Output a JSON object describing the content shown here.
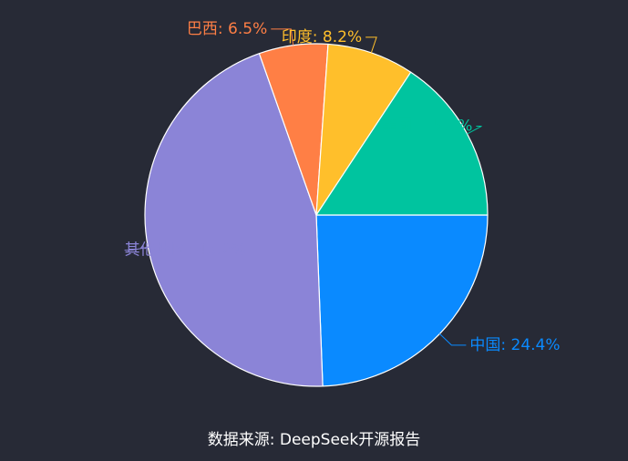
{
  "chart_data": {
    "type": "pie",
    "slices": [
      {
        "name": "中国",
        "value": 24.4,
        "display": "24.4%",
        "color": "#0a8aff"
      },
      {
        "name": "其他地区",
        "value": 45.2,
        "display": "45.2%",
        "color": "#8b84d7"
      },
      {
        "name": "巴西",
        "value": 6.5,
        "display": "6.5%",
        "color": "#ff7f45"
      },
      {
        "name": "印度",
        "value": 8.2,
        "display": "8.2%",
        "color": "#ffbf2b"
      },
      {
        "name": "美国",
        "value": 15.7,
        "display": "15.7%",
        "color": "#00c49f"
      }
    ],
    "start_angle_deg": 0,
    "direction": "clockwise-from-east",
    "legend": "none",
    "label_separator": ": "
  },
  "footer": {
    "source": "数据来源: DeepSeek开源报告"
  }
}
